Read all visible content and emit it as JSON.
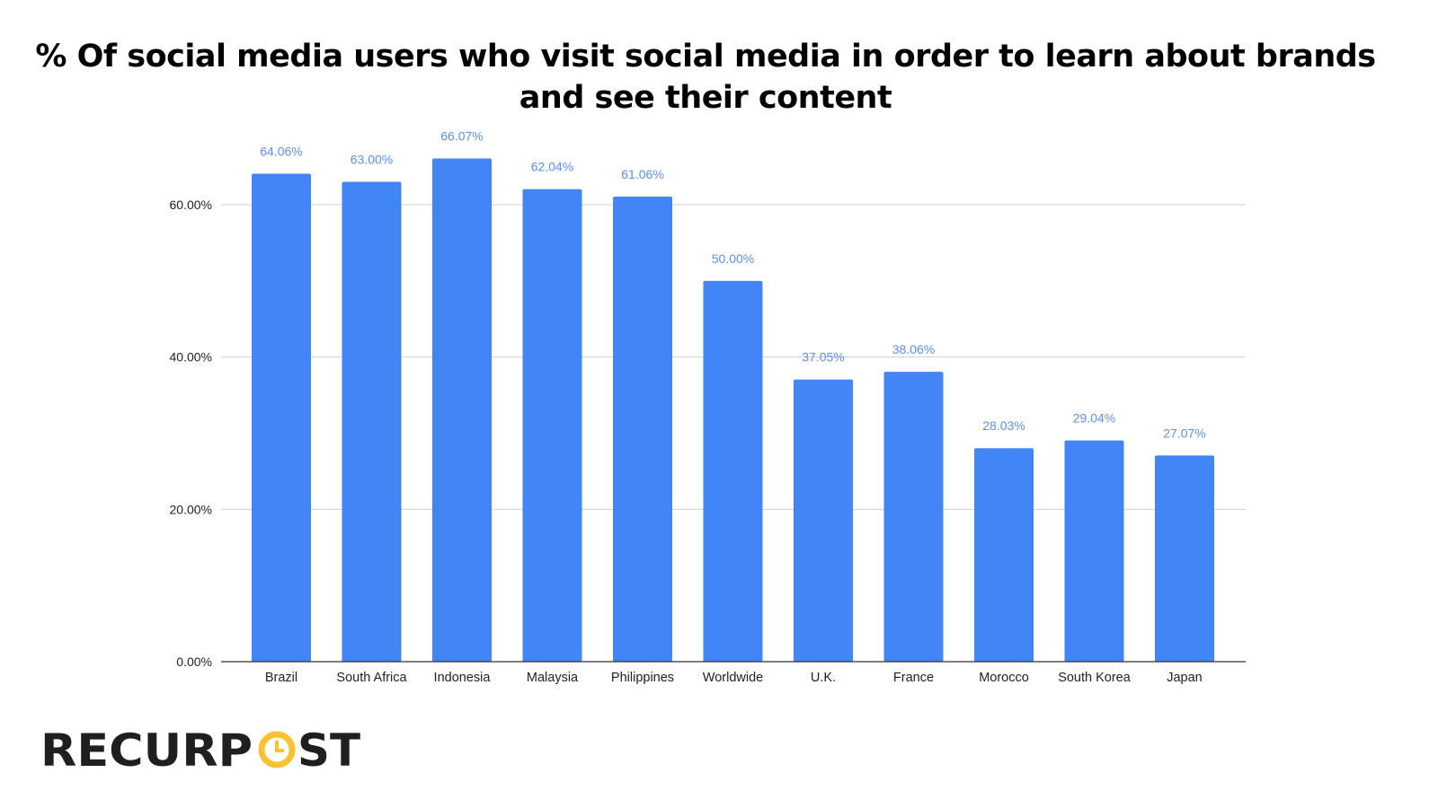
{
  "chart_data": {
    "type": "bar",
    "title": "% Of social media users who visit social media in order to learn about brands and see their content",
    "categories": [
      "Brazil",
      "South Africa",
      "Indonesia",
      "Malaysia",
      "Philippines",
      "Worldwide",
      "U.K.",
      "France",
      "Morocco",
      "South Korea",
      "Japan"
    ],
    "values": [
      64.06,
      63.0,
      66.07,
      62.04,
      61.06,
      50.0,
      37.05,
      38.06,
      28.03,
      29.04,
      27.07
    ],
    "data_labels": [
      "64.06%",
      "63.00%",
      "66.07%",
      "62.04%",
      "61.06%",
      "50.00%",
      "37.05%",
      "38.06%",
      "28.03%",
      "29.04%",
      "27.07%"
    ],
    "yticks": [
      0,
      20,
      40,
      60
    ],
    "ytick_labels": [
      "0.00%",
      "20.00%",
      "40.00%",
      "60.00%"
    ],
    "ylim": [
      0,
      60
    ],
    "xlabel": "",
    "ylabel": "",
    "grid": true,
    "legend": "none",
    "bar_color": "#4285f4",
    "label_color": "#5b8ff5"
  },
  "logo": {
    "text": "RECURPOST",
    "colors": {
      "dark": "#1f1f1f",
      "accent": "#f9c22e"
    }
  }
}
